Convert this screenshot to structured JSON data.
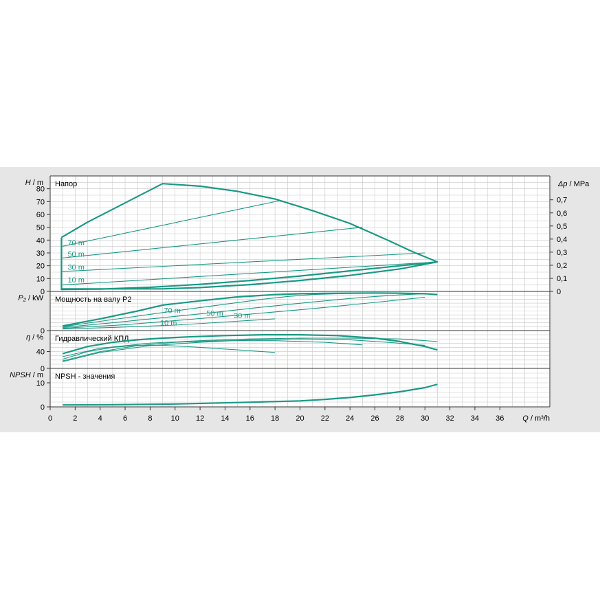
{
  "colors": {
    "panel_bg": "#e6e6e6",
    "plot_bg": "#ffffff",
    "grid": "#c8c8c8",
    "axis": "#333333",
    "curve": "#1a9985",
    "label": "#1a9985",
    "text": "#000000"
  },
  "chart_data": [
    {
      "id": "head",
      "type": "line",
      "title": "Напор",
      "ylabel_symbol": "H",
      "ylabel_unit": "m",
      "ylim": [
        0,
        90
      ],
      "yticks": [
        0,
        10,
        20,
        30,
        40,
        50,
        60,
        70,
        80
      ],
      "y2label_symbol": "Δp",
      "y2label_unit": "MPa",
      "y2ticks": [
        "0",
        "0,1",
        "0,2",
        "0,3",
        "0,4",
        "0,5",
        "0,6",
        "0,7"
      ],
      "y2tick_values": [
        0,
        10.2,
        20.4,
        30.6,
        40.8,
        51.0,
        61.2,
        71.4
      ],
      "series": [
        {
          "role": "envelope",
          "x": [
            0.9,
            0.9,
            9,
            12,
            16,
            20,
            24,
            28,
            31,
            28,
            24,
            20,
            16,
            12,
            8,
            4,
            0.9,
            0.9
          ],
          "y": [
            42,
            2,
            2,
            3,
            5.3,
            8.5,
            12.5,
            17.5,
            23,
            20,
            16,
            12,
            8.5,
            5.5,
            3.2,
            1.8,
            1.5,
            42
          ]
        },
        {
          "role": "max",
          "x": [
            0.9,
            3,
            9,
            12,
            15,
            18,
            21,
            24,
            27,
            29,
            31
          ],
          "y": [
            42,
            54,
            84,
            82,
            78,
            72,
            63,
            53,
            40,
            31,
            23
          ]
        },
        {
          "name": "70 m",
          "x": [
            0.9,
            18.5
          ],
          "y": [
            35,
            71
          ]
        },
        {
          "name": "50 m",
          "x": [
            0.9,
            25
          ],
          "y": [
            26,
            50
          ]
        },
        {
          "name": "30 m",
          "x": [
            0.9,
            30
          ],
          "y": [
            15.5,
            30
          ]
        },
        {
          "name": "10 m",
          "x": [
            0.9,
            31
          ],
          "y": [
            5,
            23
          ]
        }
      ],
      "labels": [
        {
          "text": "70 m",
          "x": 1.4,
          "y": 36
        },
        {
          "text": "50 m",
          "x": 1.4,
          "y": 27
        },
        {
          "text": "30 m",
          "x": 1.4,
          "y": 17
        },
        {
          "text": "10 m",
          "x": 1.4,
          "y": 7
        }
      ]
    },
    {
      "id": "power",
      "type": "line",
      "title": "Мощность на валу P2",
      "ylabel_symbol": "P₂",
      "ylabel_unit": "kW",
      "ylim": [
        0,
        1
      ],
      "yticks": [
        0
      ],
      "series": [
        {
          "role": "max",
          "x": [
            1,
            4,
            7,
            9,
            12,
            15,
            18,
            20,
            22,
            24,
            26,
            28,
            30,
            31
          ],
          "y": [
            0.12,
            0.3,
            0.5,
            0.65,
            0.76,
            0.86,
            0.92,
            0.94,
            0.95,
            0.955,
            0.96,
            0.955,
            0.94,
            0.92
          ]
        },
        {
          "name": "70 m",
          "x": [
            1,
            5,
            9,
            13,
            17,
            19,
            21,
            23,
            25,
            26
          ],
          "y": [
            0.1,
            0.28,
            0.46,
            0.63,
            0.8,
            0.87,
            0.92,
            0.94,
            0.955,
            0.96
          ]
        },
        {
          "name": "50 m",
          "x": [
            1,
            5,
            9,
            13,
            17,
            21,
            24,
            26,
            28,
            30
          ],
          "y": [
            0.08,
            0.2,
            0.33,
            0.46,
            0.6,
            0.73,
            0.82,
            0.87,
            0.91,
            0.94
          ]
        },
        {
          "name": "30 m",
          "x": [
            1,
            6,
            11,
            16,
            21,
            26,
            30
          ],
          "y": [
            0.06,
            0.15,
            0.28,
            0.42,
            0.56,
            0.72,
            0.85
          ]
        },
        {
          "name": "10 m",
          "x": [
            1,
            5,
            10,
            14,
            18
          ],
          "y": [
            0.04,
            0.08,
            0.14,
            0.22,
            0.3
          ]
        }
      ],
      "labels": [
        {
          "text": "70 m",
          "x": 9.1,
          "y": 0.45
        },
        {
          "text": "50 m",
          "x": 12.5,
          "y": 0.38
        },
        {
          "text": "30 m",
          "x": 14.7,
          "y": 0.32
        },
        {
          "text": "10 m",
          "x": 8.8,
          "y": 0.13
        }
      ]
    },
    {
      "id": "efficiency",
      "type": "line",
      "title": "Гидравлический КПД",
      "ylabel_symbol": "η",
      "ylabel_unit": "%",
      "ylim": [
        0,
        90
      ],
      "yticks": [
        0,
        40
      ],
      "series": [
        {
          "role": "max",
          "x": [
            1,
            3,
            5,
            7,
            9,
            11,
            14,
            17,
            20,
            23,
            26,
            28,
            30,
            31
          ],
          "y": [
            35,
            52,
            62,
            68,
            72,
            75,
            78,
            80,
            80,
            78,
            72,
            64,
            52,
            44
          ]
        },
        {
          "name": "70 m",
          "x": [
            1,
            3,
            5,
            7,
            9,
            12,
            15,
            18
          ],
          "y": [
            22,
            40,
            50,
            55,
            55,
            50,
            44,
            38
          ]
        },
        {
          "name": "50 m",
          "x": [
            1,
            4,
            7,
            10,
            14,
            18,
            22,
            25
          ],
          "y": [
            18,
            40,
            54,
            62,
            66,
            66,
            62,
            56
          ]
        },
        {
          "name": "30 m",
          "x": [
            1,
            4,
            8,
            12,
            16,
            20,
            24,
            27,
            30
          ],
          "y": [
            16,
            38,
            54,
            62,
            68,
            70,
            68,
            62,
            55
          ]
        },
        {
          "name": "10 m",
          "x": [
            1,
            4,
            8,
            12,
            16,
            20,
            24,
            28,
            31
          ],
          "y": [
            28,
            48,
            60,
            66,
            70,
            72,
            72,
            70,
            64
          ]
        }
      ]
    },
    {
      "id": "npsh",
      "type": "line",
      "title": "NPSH - значения",
      "ylabel_symbol": "NPSH",
      "ylabel_unit": "m",
      "ylim": [
        0,
        16
      ],
      "yticks": [
        0,
        10
      ],
      "series": [
        {
          "role": "max",
          "x": [
            1,
            5,
            10,
            15,
            20,
            22,
            24,
            26,
            28,
            30,
            31
          ],
          "y": [
            0.8,
            0.9,
            1.2,
            1.8,
            2.5,
            3.1,
            3.9,
            5.0,
            6.3,
            8.0,
            9.4
          ]
        }
      ]
    }
  ],
  "x_axis": {
    "label_symbol": "Q",
    "label_unit": "m³/h",
    "xlim": [
      0,
      40
    ],
    "ticks": [
      0,
      2,
      4,
      6,
      8,
      10,
      12,
      14,
      16,
      18,
      20,
      22,
      24,
      26,
      28,
      30,
      32,
      34,
      36
    ]
  }
}
